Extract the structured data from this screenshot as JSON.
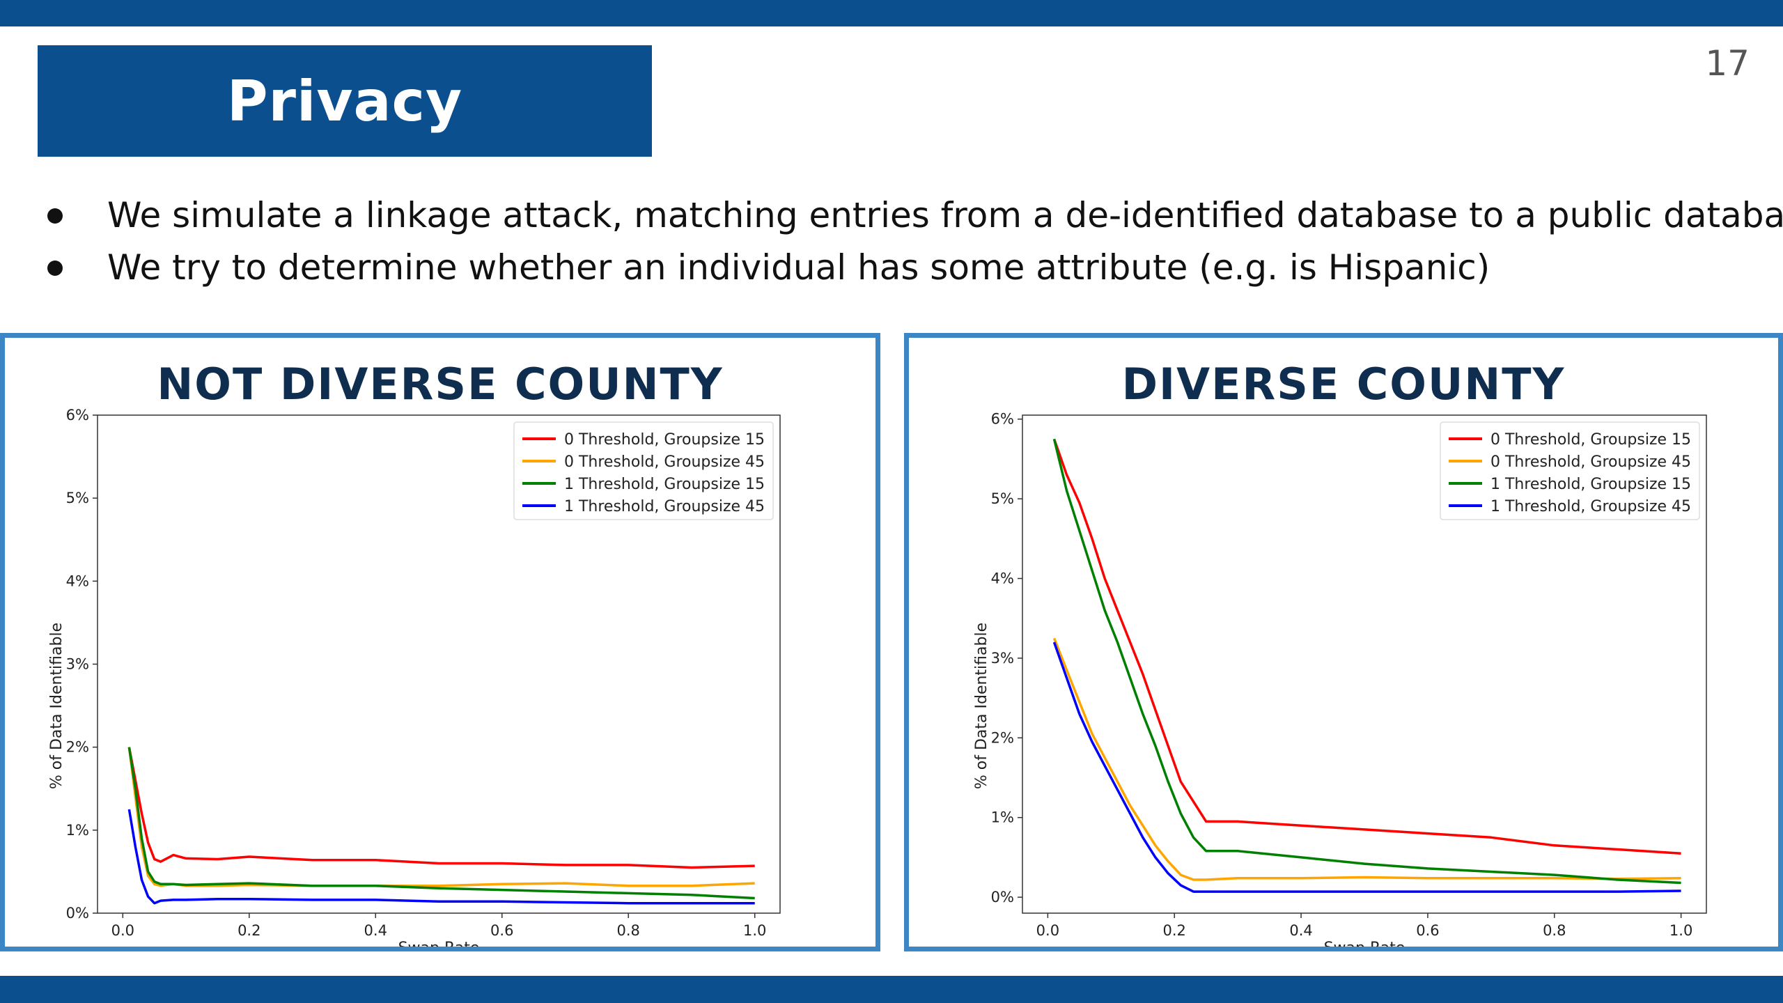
{
  "slide": {
    "title": "Privacy",
    "page_number": "17",
    "bullets": [
      "We simulate a linkage attack, matching entries from a de-identified database to a public database.",
      "We try to determine whether an individual has some attribute (e.g. is Hispanic)"
    ]
  },
  "colors": {
    "brand": "#0b4f8f",
    "panel_border": "#3d86c6",
    "title_dark": "#0f2d4f"
  },
  "chart_data": [
    {
      "type": "line",
      "title": "NOT DIVERSE COUNTY",
      "xlabel": "Swap Rate",
      "ylabel": "% of Data Identifiable",
      "xlim": [
        -0.04,
        1.04
      ],
      "ylim": [
        0,
        6
      ],
      "xticks": [
        0.0,
        0.2,
        0.4,
        0.6,
        0.8,
        1.0
      ],
      "xtick_labels": [
        "0.0",
        "0.2",
        "0.4",
        "0.6",
        "0.8",
        "1.0"
      ],
      "yticks": [
        0,
        1,
        2,
        3,
        4,
        5,
        6
      ],
      "ytick_labels": [
        "0%",
        "1%",
        "2%",
        "3%",
        "4%",
        "5%",
        "6%"
      ],
      "legend_position": "top-right",
      "grid": false,
      "series": [
        {
          "name": "0 Threshold, Groupsize 15",
          "color": "#ff0000",
          "x": [
            0.01,
            0.02,
            0.03,
            0.04,
            0.05,
            0.06,
            0.08,
            0.1,
            0.15,
            0.2,
            0.3,
            0.4,
            0.5,
            0.6,
            0.7,
            0.8,
            0.9,
            1.0
          ],
          "y": [
            2.0,
            1.6,
            1.2,
            0.85,
            0.65,
            0.62,
            0.7,
            0.66,
            0.65,
            0.68,
            0.64,
            0.64,
            0.6,
            0.6,
            0.58,
            0.58,
            0.55,
            0.57
          ]
        },
        {
          "name": "0 Threshold, Groupsize 45",
          "color": "#ffa500",
          "x": [
            0.01,
            0.02,
            0.03,
            0.04,
            0.05,
            0.06,
            0.08,
            0.1,
            0.15,
            0.2,
            0.3,
            0.4,
            0.5,
            0.6,
            0.7,
            0.8,
            0.9,
            1.0
          ],
          "y": [
            2.0,
            1.4,
            0.8,
            0.45,
            0.35,
            0.33,
            0.35,
            0.33,
            0.33,
            0.34,
            0.33,
            0.33,
            0.33,
            0.35,
            0.36,
            0.33,
            0.33,
            0.36
          ]
        },
        {
          "name": "1 Threshold, Groupsize 15",
          "color": "#008000",
          "x": [
            0.01,
            0.02,
            0.03,
            0.04,
            0.05,
            0.06,
            0.08,
            0.1,
            0.15,
            0.2,
            0.3,
            0.4,
            0.5,
            0.6,
            0.7,
            0.8,
            0.9,
            1.0
          ],
          "y": [
            2.0,
            1.5,
            0.9,
            0.5,
            0.38,
            0.35,
            0.35,
            0.34,
            0.35,
            0.36,
            0.33,
            0.33,
            0.3,
            0.28,
            0.26,
            0.24,
            0.22,
            0.18
          ]
        },
        {
          "name": "1 Threshold, Groupsize 45",
          "color": "#0000ff",
          "x": [
            0.01,
            0.02,
            0.03,
            0.04,
            0.05,
            0.06,
            0.08,
            0.1,
            0.15,
            0.2,
            0.3,
            0.4,
            0.5,
            0.6,
            0.7,
            0.8,
            0.9,
            1.0
          ],
          "y": [
            1.25,
            0.8,
            0.4,
            0.2,
            0.12,
            0.15,
            0.16,
            0.16,
            0.17,
            0.17,
            0.16,
            0.16,
            0.14,
            0.14,
            0.13,
            0.12,
            0.12,
            0.12
          ]
        }
      ]
    },
    {
      "type": "line",
      "title": "DIVERSE COUNTY",
      "xlabel": "Swap Rate",
      "ylabel": "% of Data Identifiable",
      "xlim": [
        -0.04,
        1.04
      ],
      "ylim": [
        -0.2,
        6.05
      ],
      "xticks": [
        0.0,
        0.2,
        0.4,
        0.6,
        0.8,
        1.0
      ],
      "xtick_labels": [
        "0.0",
        "0.2",
        "0.4",
        "0.6",
        "0.8",
        "1.0"
      ],
      "yticks": [
        0,
        1,
        2,
        3,
        4,
        5,
        6
      ],
      "ytick_labels": [
        "0%",
        "1%",
        "2%",
        "3%",
        "4%",
        "5%",
        "6%"
      ],
      "legend_position": "top-right",
      "grid": false,
      "series": [
        {
          "name": "0 Threshold, Groupsize 15",
          "color": "#ff0000",
          "x": [
            0.01,
            0.03,
            0.05,
            0.07,
            0.09,
            0.11,
            0.13,
            0.15,
            0.17,
            0.19,
            0.21,
            0.23,
            0.25,
            0.3,
            0.4,
            0.5,
            0.6,
            0.7,
            0.8,
            0.9,
            1.0
          ],
          "y": [
            5.75,
            5.3,
            4.95,
            4.5,
            4.0,
            3.6,
            3.2,
            2.8,
            2.35,
            1.9,
            1.45,
            1.2,
            0.95,
            0.95,
            0.9,
            0.85,
            0.8,
            0.75,
            0.65,
            0.6,
            0.55
          ]
        },
        {
          "name": "0 Threshold, Groupsize 45",
          "color": "#ffa500",
          "x": [
            0.01,
            0.03,
            0.05,
            0.07,
            0.09,
            0.11,
            0.13,
            0.15,
            0.17,
            0.19,
            0.21,
            0.23,
            0.25,
            0.3,
            0.4,
            0.5,
            0.6,
            0.7,
            0.8,
            0.9,
            1.0
          ],
          "y": [
            3.25,
            2.85,
            2.45,
            2.05,
            1.75,
            1.45,
            1.15,
            0.9,
            0.65,
            0.45,
            0.28,
            0.22,
            0.22,
            0.24,
            0.24,
            0.25,
            0.24,
            0.24,
            0.24,
            0.23,
            0.24
          ]
        },
        {
          "name": "1 Threshold, Groupsize 15",
          "color": "#008000",
          "x": [
            0.01,
            0.03,
            0.05,
            0.07,
            0.09,
            0.11,
            0.13,
            0.15,
            0.17,
            0.19,
            0.21,
            0.23,
            0.25,
            0.3,
            0.4,
            0.5,
            0.6,
            0.7,
            0.8,
            0.9,
            1.0
          ],
          "y": [
            5.75,
            5.1,
            4.6,
            4.1,
            3.6,
            3.2,
            2.75,
            2.3,
            1.9,
            1.45,
            1.05,
            0.75,
            0.58,
            0.58,
            0.5,
            0.42,
            0.36,
            0.32,
            0.28,
            0.22,
            0.18
          ]
        },
        {
          "name": "1 Threshold, Groupsize 45",
          "color": "#0000ff",
          "x": [
            0.01,
            0.03,
            0.05,
            0.07,
            0.09,
            0.11,
            0.13,
            0.15,
            0.17,
            0.19,
            0.21,
            0.23,
            0.25,
            0.3,
            0.4,
            0.5,
            0.6,
            0.7,
            0.8,
            0.9,
            1.0
          ],
          "y": [
            3.2,
            2.75,
            2.3,
            1.95,
            1.65,
            1.35,
            1.05,
            0.75,
            0.5,
            0.3,
            0.15,
            0.07,
            0.07,
            0.07,
            0.07,
            0.07,
            0.07,
            0.07,
            0.07,
            0.07,
            0.08
          ]
        }
      ]
    }
  ]
}
